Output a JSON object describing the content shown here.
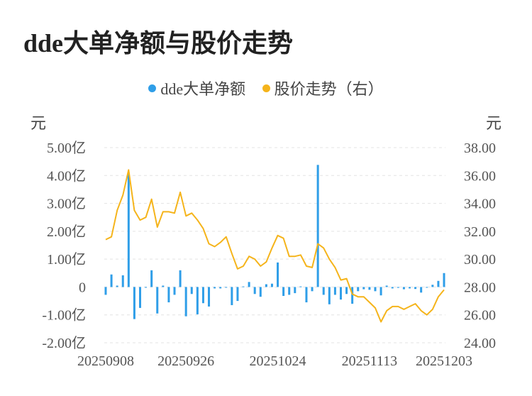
{
  "title": "dde大单净额与股价走势",
  "legend": [
    {
      "label": "dde大单净额",
      "color": "#2f9ee8"
    },
    {
      "label": "股价走势（右）",
      "color": "#f5b41b"
    }
  ],
  "left_unit": "元",
  "right_unit": "元",
  "chart_data": {
    "type": "bar+line",
    "left_axis": {
      "ticks": [
        "5.00亿",
        "4.00亿",
        "3.00亿",
        "2.00亿",
        "1.00亿",
        "0",
        "-1.00亿",
        "-2.00亿"
      ],
      "min": -2.0,
      "max": 5.0
    },
    "right_axis": {
      "ticks": [
        "38.00",
        "36.00",
        "34.00",
        "32.00",
        "30.00",
        "28.00",
        "26.00",
        "24.00"
      ],
      "min": 24.0,
      "max": 38.0
    },
    "x_ticks": [
      "20250908",
      "20250926",
      "20251024",
      "20251113",
      "20251203"
    ],
    "grid": "horizontal-dashed",
    "series": [
      {
        "name": "dde大单净额",
        "type": "bar",
        "color": "#2f9ee8",
        "values": [
          -0.28,
          0.45,
          0.05,
          0.42,
          4.1,
          -1.15,
          -0.75,
          0.0,
          0.6,
          -0.95,
          0.05,
          -0.55,
          -0.28,
          0.6,
          -1.05,
          -0.25,
          -0.98,
          -0.58,
          -0.7,
          -0.05,
          -0.05,
          0.0,
          -0.65,
          -0.5,
          0.02,
          0.18,
          -0.25,
          -0.35,
          0.1,
          0.12,
          0.88,
          -0.32,
          -0.28,
          -0.22,
          0.02,
          -0.55,
          -0.15,
          4.38,
          -0.28,
          -0.62,
          -0.28,
          -0.45,
          -0.25,
          -0.6,
          -0.15,
          -0.08,
          -0.1,
          -0.15,
          -0.3,
          0.05,
          -0.05,
          -0.03,
          -0.08,
          -0.05,
          -0.07,
          -0.2,
          -0.02,
          0.08,
          0.22,
          0.5
        ]
      },
      {
        "name": "股价走势（右）",
        "type": "line",
        "color": "#f5b41b",
        "values": [
          31.4,
          31.6,
          33.5,
          34.6,
          36.4,
          33.5,
          32.8,
          33.0,
          34.3,
          32.3,
          33.4,
          33.4,
          33.3,
          34.8,
          33.1,
          33.3,
          32.8,
          32.2,
          31.1,
          30.9,
          31.2,
          31.6,
          30.4,
          29.3,
          29.5,
          30.2,
          30.0,
          29.5,
          29.8,
          30.8,
          31.7,
          31.5,
          30.2,
          30.2,
          30.3,
          29.5,
          29.4,
          31.1,
          30.8,
          30.0,
          29.4,
          28.5,
          28.6,
          27.5,
          27.3,
          27.3,
          26.9,
          26.5,
          25.5,
          26.3,
          26.6,
          26.6,
          26.4,
          26.6,
          26.8,
          26.3,
          26.0,
          26.4,
          27.3,
          27.8
        ]
      }
    ]
  }
}
